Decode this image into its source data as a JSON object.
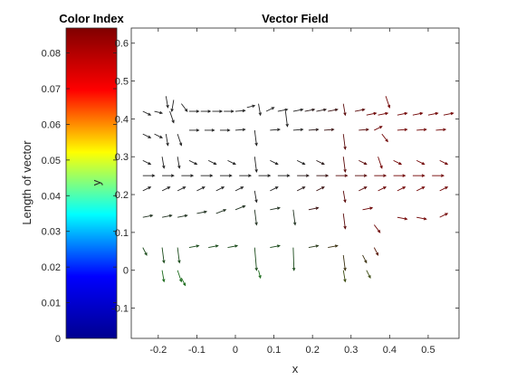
{
  "chart_data": [
    {
      "type": "colorbar",
      "title": "Color Index",
      "ylabel": "Length of vector",
      "ylim": [
        0,
        0.087
      ],
      "yticks": [
        0,
        0.01,
        0.02,
        0.03,
        0.04,
        0.05,
        0.06,
        0.07,
        0.08
      ],
      "ytick_labels": [
        "0",
        "0.01",
        "0.02",
        "0.03",
        "0.04",
        "0.05",
        "0.06",
        "0.07",
        "0.08"
      ],
      "colormap": "jet",
      "colormap_stops": [
        "#00008f",
        "#0000ff",
        "#00ffff",
        "#ffff00",
        "#ff0000",
        "#800000"
      ]
    },
    {
      "type": "quiver",
      "title": "Vector Field",
      "xlabel": "x",
      "ylabel": "y",
      "xlim": [
        -0.27,
        0.58
      ],
      "ylim": [
        -0.18,
        0.64
      ],
      "xticks": [
        -0.2,
        -0.1,
        0,
        0.1,
        0.2,
        0.3,
        0.4,
        0.5
      ],
      "xtick_labels": [
        "-0.2",
        "-0.1",
        "0",
        "0.1",
        "0.2",
        "0.3",
        "0.4",
        "0.5"
      ],
      "yticks": [
        -0.1,
        0,
        0.1,
        0.2,
        0.3,
        0.4,
        0.5,
        0.6
      ],
      "ytick_labels": [
        "-0.1",
        "0",
        "0.1",
        "0.2",
        "0.3",
        "0.4",
        "0.5",
        "0.6"
      ],
      "grid": false,
      "vectors": [
        {
          "x": -0.24,
          "y": 0.42,
          "u": 0.02,
          "v": -0.01,
          "c": "#222222"
        },
        {
          "x": -0.21,
          "y": 0.42,
          "u": 0.02,
          "v": -0.005,
          "c": "#222222"
        },
        {
          "x": -0.18,
          "y": 0.46,
          "u": 0.005,
          "v": -0.03,
          "c": "#222222"
        },
        {
          "x": -0.17,
          "y": 0.42,
          "u": 0.01,
          "v": -0.03,
          "c": "#222222"
        },
        {
          "x": -0.16,
          "y": 0.45,
          "u": -0.005,
          "v": -0.03,
          "c": "#222222"
        },
        {
          "x": -0.14,
          "y": 0.44,
          "u": 0.015,
          "v": -0.02,
          "c": "#222222"
        },
        {
          "x": -0.12,
          "y": 0.42,
          "u": 0.025,
          "v": 0,
          "c": "#222222"
        },
        {
          "x": -0.09,
          "y": 0.42,
          "u": 0.025,
          "v": 0,
          "c": "#222222"
        },
        {
          "x": -0.06,
          "y": 0.42,
          "u": 0.025,
          "v": 0,
          "c": "#222222"
        },
        {
          "x": -0.03,
          "y": 0.42,
          "u": 0.025,
          "v": 0,
          "c": "#222222"
        },
        {
          "x": 0.0,
          "y": 0.42,
          "u": 0.025,
          "v": 0.002,
          "c": "#222222"
        },
        {
          "x": 0.03,
          "y": 0.43,
          "u": 0.02,
          "v": 0.005,
          "c": "#222222"
        },
        {
          "x": 0.06,
          "y": 0.44,
          "u": 0.005,
          "v": -0.03,
          "c": "#222222"
        },
        {
          "x": 0.08,
          "y": 0.42,
          "u": 0.02,
          "v": 0.01,
          "c": "#222222"
        },
        {
          "x": 0.11,
          "y": 0.42,
          "u": 0.025,
          "v": 0.005,
          "c": "#222222"
        },
        {
          "x": 0.13,
          "y": 0.42,
          "u": 0.005,
          "v": -0.04,
          "c": "#222222"
        },
        {
          "x": 0.15,
          "y": 0.42,
          "u": 0.025,
          "v": 0.005,
          "c": "#222222"
        },
        {
          "x": 0.18,
          "y": 0.42,
          "u": 0.025,
          "v": 0.005,
          "c": "#2a1a1a"
        },
        {
          "x": 0.21,
          "y": 0.42,
          "u": 0.025,
          "v": 0.005,
          "c": "#2a1a1a"
        },
        {
          "x": 0.24,
          "y": 0.42,
          "u": 0.025,
          "v": 0.005,
          "c": "#3a1010"
        },
        {
          "x": 0.28,
          "y": 0.44,
          "u": 0.005,
          "v": -0.03,
          "c": "#5a0a0a"
        },
        {
          "x": 0.31,
          "y": 0.42,
          "u": 0.025,
          "v": 0.005,
          "c": "#5a0a0a"
        },
        {
          "x": 0.34,
          "y": 0.41,
          "u": 0.025,
          "v": 0.005,
          "c": "#6a0000"
        },
        {
          "x": 0.37,
          "y": 0.41,
          "u": 0.025,
          "v": 0.005,
          "c": "#700000"
        },
        {
          "x": 0.39,
          "y": 0.46,
          "u": 0.01,
          "v": -0.03,
          "c": "#700000"
        },
        {
          "x": 0.42,
          "y": 0.41,
          "u": 0.025,
          "v": 0.005,
          "c": "#700000"
        },
        {
          "x": 0.46,
          "y": 0.41,
          "u": 0.025,
          "v": 0.005,
          "c": "#700000"
        },
        {
          "x": 0.5,
          "y": 0.41,
          "u": 0.025,
          "v": 0.005,
          "c": "#700000"
        },
        {
          "x": 0.54,
          "y": 0.41,
          "u": 0.025,
          "v": 0.005,
          "c": "#700000"
        },
        {
          "x": -0.24,
          "y": 0.36,
          "u": 0.02,
          "v": -0.01,
          "c": "#222222"
        },
        {
          "x": -0.21,
          "y": 0.36,
          "u": 0.02,
          "v": -0.01,
          "c": "#222222"
        },
        {
          "x": -0.18,
          "y": 0.36,
          "u": 0.005,
          "v": -0.03,
          "c": "#222222"
        },
        {
          "x": -0.15,
          "y": 0.36,
          "u": 0.01,
          "v": -0.03,
          "c": "#222222"
        },
        {
          "x": -0.12,
          "y": 0.37,
          "u": 0.025,
          "v": 0,
          "c": "#222222"
        },
        {
          "x": -0.08,
          "y": 0.37,
          "u": 0.025,
          "v": 0,
          "c": "#222222"
        },
        {
          "x": -0.04,
          "y": 0.37,
          "u": 0.025,
          "v": 0,
          "c": "#222222"
        },
        {
          "x": 0.0,
          "y": 0.37,
          "u": 0.025,
          "v": 0.002,
          "c": "#222222"
        },
        {
          "x": 0.05,
          "y": 0.37,
          "u": 0.005,
          "v": -0.04,
          "c": "#222222"
        },
        {
          "x": 0.09,
          "y": 0.37,
          "u": 0.025,
          "v": 0.002,
          "c": "#222222"
        },
        {
          "x": 0.15,
          "y": 0.37,
          "u": 0.025,
          "v": 0.002,
          "c": "#222222"
        },
        {
          "x": 0.19,
          "y": 0.37,
          "u": 0.025,
          "v": 0.002,
          "c": "#2a1a1a"
        },
        {
          "x": 0.23,
          "y": 0.37,
          "u": 0.025,
          "v": 0.002,
          "c": "#3a1010"
        },
        {
          "x": 0.28,
          "y": 0.36,
          "u": 0.005,
          "v": -0.04,
          "c": "#5a0a0a"
        },
        {
          "x": 0.32,
          "y": 0.37,
          "u": 0.025,
          "v": 0.002,
          "c": "#5a0a0a"
        },
        {
          "x": 0.36,
          "y": 0.37,
          "u": 0.02,
          "v": 0.01,
          "c": "#6a0000"
        },
        {
          "x": 0.38,
          "y": 0.36,
          "u": 0.015,
          "v": -0.02,
          "c": "#700000"
        },
        {
          "x": 0.42,
          "y": 0.37,
          "u": 0.025,
          "v": 0.002,
          "c": "#700000"
        },
        {
          "x": 0.47,
          "y": 0.37,
          "u": 0.025,
          "v": 0.002,
          "c": "#700000"
        },
        {
          "x": 0.52,
          "y": 0.37,
          "u": 0.025,
          "v": 0.002,
          "c": "#700000"
        },
        {
          "x": -0.24,
          "y": 0.29,
          "u": 0.02,
          "v": -0.01,
          "c": "#222222"
        },
        {
          "x": -0.19,
          "y": 0.3,
          "u": 0.005,
          "v": -0.03,
          "c": "#222222"
        },
        {
          "x": -0.15,
          "y": 0.3,
          "u": 0.005,
          "v": -0.03,
          "c": "#222222"
        },
        {
          "x": -0.12,
          "y": 0.29,
          "u": 0.02,
          "v": -0.01,
          "c": "#222222"
        },
        {
          "x": -0.07,
          "y": 0.29,
          "u": 0.02,
          "v": -0.01,
          "c": "#222222"
        },
        {
          "x": -0.02,
          "y": 0.29,
          "u": 0.02,
          "v": -0.01,
          "c": "#222222"
        },
        {
          "x": 0.05,
          "y": 0.3,
          "u": 0.005,
          "v": -0.04,
          "c": "#222222"
        },
        {
          "x": 0.09,
          "y": 0.29,
          "u": 0.02,
          "v": -0.01,
          "c": "#222222"
        },
        {
          "x": 0.16,
          "y": 0.29,
          "u": 0.02,
          "v": -0.01,
          "c": "#222222"
        },
        {
          "x": 0.21,
          "y": 0.29,
          "u": 0.02,
          "v": -0.01,
          "c": "#2a1a1a"
        },
        {
          "x": 0.28,
          "y": 0.3,
          "u": 0.005,
          "v": -0.04,
          "c": "#5a0a0a"
        },
        {
          "x": 0.32,
          "y": 0.29,
          "u": 0.02,
          "v": -0.01,
          "c": "#5a0a0a"
        },
        {
          "x": 0.37,
          "y": 0.3,
          "u": 0.01,
          "v": -0.03,
          "c": "#700000"
        },
        {
          "x": 0.41,
          "y": 0.29,
          "u": 0.02,
          "v": -0.01,
          "c": "#700000"
        },
        {
          "x": 0.47,
          "y": 0.29,
          "u": 0.02,
          "v": -0.01,
          "c": "#700000"
        },
        {
          "x": 0.53,
          "y": 0.29,
          "u": 0.02,
          "v": -0.01,
          "c": "#700000"
        },
        {
          "x": -0.24,
          "y": 0.25,
          "u": 0.03,
          "v": 0,
          "c": "#222222"
        },
        {
          "x": -0.19,
          "y": 0.25,
          "u": 0.03,
          "v": 0,
          "c": "#222222"
        },
        {
          "x": -0.14,
          "y": 0.25,
          "u": 0.03,
          "v": 0,
          "c": "#222222"
        },
        {
          "x": -0.09,
          "y": 0.25,
          "u": 0.03,
          "v": 0,
          "c": "#222222"
        },
        {
          "x": -0.04,
          "y": 0.25,
          "u": 0.03,
          "v": 0,
          "c": "#222222"
        },
        {
          "x": 0.01,
          "y": 0.25,
          "u": 0.03,
          "v": 0,
          "c": "#222222"
        },
        {
          "x": 0.06,
          "y": 0.25,
          "u": 0.03,
          "v": 0,
          "c": "#222222"
        },
        {
          "x": 0.11,
          "y": 0.25,
          "u": 0.03,
          "v": 0,
          "c": "#222222"
        },
        {
          "x": 0.16,
          "y": 0.25,
          "u": 0.03,
          "v": 0,
          "c": "#2a1a1a"
        },
        {
          "x": 0.21,
          "y": 0.25,
          "u": 0.03,
          "v": 0,
          "c": "#3a1010"
        },
        {
          "x": 0.26,
          "y": 0.25,
          "u": 0.03,
          "v": 0,
          "c": "#5a0a0a"
        },
        {
          "x": 0.31,
          "y": 0.25,
          "u": 0.03,
          "v": 0,
          "c": "#5a0a0a"
        },
        {
          "x": 0.36,
          "y": 0.25,
          "u": 0.03,
          "v": 0,
          "c": "#6a0000"
        },
        {
          "x": 0.41,
          "y": 0.25,
          "u": 0.03,
          "v": 0,
          "c": "#700000"
        },
        {
          "x": 0.46,
          "y": 0.25,
          "u": 0.03,
          "v": 0,
          "c": "#700000"
        },
        {
          "x": 0.51,
          "y": 0.25,
          "u": 0.03,
          "v": 0,
          "c": "#700000"
        },
        {
          "x": -0.24,
          "y": 0.21,
          "u": 0.02,
          "v": 0.01,
          "c": "#222222"
        },
        {
          "x": -0.19,
          "y": 0.21,
          "u": 0.02,
          "v": 0.01,
          "c": "#222222"
        },
        {
          "x": -0.15,
          "y": 0.21,
          "u": 0.02,
          "v": 0.01,
          "c": "#222222"
        },
        {
          "x": -0.1,
          "y": 0.21,
          "u": 0.02,
          "v": 0.01,
          "c": "#222222"
        },
        {
          "x": -0.05,
          "y": 0.21,
          "u": 0.02,
          "v": 0.01,
          "c": "#222222"
        },
        {
          "x": 0.0,
          "y": 0.21,
          "u": 0.02,
          "v": 0.01,
          "c": "#222222"
        },
        {
          "x": 0.05,
          "y": 0.21,
          "u": 0.005,
          "v": -0.03,
          "c": "#222222"
        },
        {
          "x": 0.09,
          "y": 0.21,
          "u": 0.02,
          "v": 0.01,
          "c": "#222222"
        },
        {
          "x": 0.16,
          "y": 0.21,
          "u": 0.02,
          "v": 0.01,
          "c": "#2a1a1a"
        },
        {
          "x": 0.21,
          "y": 0.21,
          "u": 0.02,
          "v": 0.01,
          "c": "#3a1010"
        },
        {
          "x": 0.28,
          "y": 0.21,
          "u": 0.005,
          "v": -0.03,
          "c": "#5a0a0a"
        },
        {
          "x": 0.32,
          "y": 0.21,
          "u": 0.02,
          "v": 0.01,
          "c": "#5a0a0a"
        },
        {
          "x": 0.37,
          "y": 0.21,
          "u": 0.02,
          "v": 0.01,
          "c": "#6a0000"
        },
        {
          "x": 0.42,
          "y": 0.21,
          "u": 0.02,
          "v": 0.01,
          "c": "#700000"
        },
        {
          "x": 0.47,
          "y": 0.21,
          "u": 0.02,
          "v": 0.01,
          "c": "#700000"
        },
        {
          "x": 0.53,
          "y": 0.21,
          "u": 0.02,
          "v": 0.01,
          "c": "#700000"
        },
        {
          "x": -0.24,
          "y": 0.14,
          "u": 0.025,
          "v": 0.005,
          "c": "#223322"
        },
        {
          "x": -0.19,
          "y": 0.14,
          "u": 0.025,
          "v": 0.005,
          "c": "#223322"
        },
        {
          "x": -0.15,
          "y": 0.14,
          "u": 0.025,
          "v": 0.005,
          "c": "#223322"
        },
        {
          "x": -0.1,
          "y": 0.15,
          "u": 0.025,
          "v": 0.005,
          "c": "#223322"
        },
        {
          "x": -0.05,
          "y": 0.15,
          "u": 0.025,
          "v": 0.01,
          "c": "#223322"
        },
        {
          "x": 0.0,
          "y": 0.16,
          "u": 0.025,
          "v": 0.01,
          "c": "#223322"
        },
        {
          "x": 0.05,
          "y": 0.16,
          "u": 0.005,
          "v": -0.04,
          "c": "#223322"
        },
        {
          "x": 0.09,
          "y": 0.16,
          "u": 0.025,
          "v": 0.005,
          "c": "#223322"
        },
        {
          "x": 0.15,
          "y": 0.16,
          "u": 0.005,
          "v": -0.04,
          "c": "#223322"
        },
        {
          "x": 0.19,
          "y": 0.16,
          "u": 0.025,
          "v": 0.005,
          "c": "#3a1010"
        },
        {
          "x": 0.28,
          "y": 0.15,
          "u": 0.005,
          "v": -0.04,
          "c": "#5a0a0a"
        },
        {
          "x": 0.33,
          "y": 0.16,
          "u": 0.025,
          "v": 0.005,
          "c": "#6a0000"
        },
        {
          "x": 0.36,
          "y": 0.12,
          "u": 0.015,
          "v": -0.02,
          "c": "#6a0000"
        },
        {
          "x": 0.42,
          "y": 0.14,
          "u": 0.025,
          "v": -0.005,
          "c": "#700000"
        },
        {
          "x": 0.47,
          "y": 0.14,
          "u": 0.025,
          "v": -0.005,
          "c": "#700000"
        },
        {
          "x": 0.53,
          "y": 0.14,
          "u": 0.02,
          "v": 0.01,
          "c": "#700000"
        },
        {
          "x": -0.24,
          "y": 0.06,
          "u": 0.01,
          "v": -0.02,
          "c": "#1a4a1a"
        },
        {
          "x": -0.19,
          "y": 0.06,
          "u": 0.005,
          "v": -0.04,
          "c": "#1a4a1a"
        },
        {
          "x": -0.15,
          "y": 0.06,
          "u": 0.005,
          "v": -0.04,
          "c": "#1a4a1a"
        },
        {
          "x": -0.12,
          "y": 0.06,
          "u": 0.025,
          "v": 0.005,
          "c": "#1a4a1a"
        },
        {
          "x": -0.07,
          "y": 0.06,
          "u": 0.025,
          "v": 0.005,
          "c": "#1a4a1a"
        },
        {
          "x": -0.02,
          "y": 0.06,
          "u": 0.025,
          "v": 0.005,
          "c": "#1a4a1a"
        },
        {
          "x": 0.05,
          "y": 0.06,
          "u": 0.005,
          "v": -0.06,
          "c": "#1a4a1a"
        },
        {
          "x": 0.09,
          "y": 0.06,
          "u": 0.025,
          "v": 0.005,
          "c": "#1a4a1a"
        },
        {
          "x": 0.15,
          "y": 0.06,
          "u": 0.002,
          "v": -0.06,
          "c": "#1a4a1a"
        },
        {
          "x": 0.19,
          "y": 0.06,
          "u": 0.025,
          "v": 0.005,
          "c": "#2a3a1a"
        },
        {
          "x": 0.24,
          "y": 0.06,
          "u": 0.025,
          "v": 0.005,
          "c": "#3a3010"
        },
        {
          "x": 0.28,
          "y": 0.04,
          "u": 0.005,
          "v": -0.04,
          "c": "#3a3010"
        },
        {
          "x": 0.33,
          "y": 0.04,
          "u": 0.01,
          "v": -0.02,
          "c": "#3a3010"
        },
        {
          "x": 0.36,
          "y": 0.06,
          "u": 0.01,
          "v": -0.02,
          "c": "#5a1a0a"
        },
        {
          "x": -0.19,
          "y": 0.0,
          "u": 0.005,
          "v": -0.03,
          "c": "#1a6a1a"
        },
        {
          "x": -0.15,
          "y": 0.0,
          "u": 0.01,
          "v": -0.03,
          "c": "#1a6a1a"
        },
        {
          "x": -0.14,
          "y": -0.02,
          "u": 0.01,
          "v": -0.02,
          "c": "#1a6a1a"
        },
        {
          "x": 0.06,
          "y": 0.0,
          "u": 0.005,
          "v": -0.02,
          "c": "#1a6a1a"
        },
        {
          "x": 0.28,
          "y": 0.0,
          "u": 0.005,
          "v": -0.03,
          "c": "#3a4a10"
        },
        {
          "x": 0.34,
          "y": 0.0,
          "u": 0.01,
          "v": -0.02,
          "c": "#3a4a10"
        }
      ]
    }
  ]
}
